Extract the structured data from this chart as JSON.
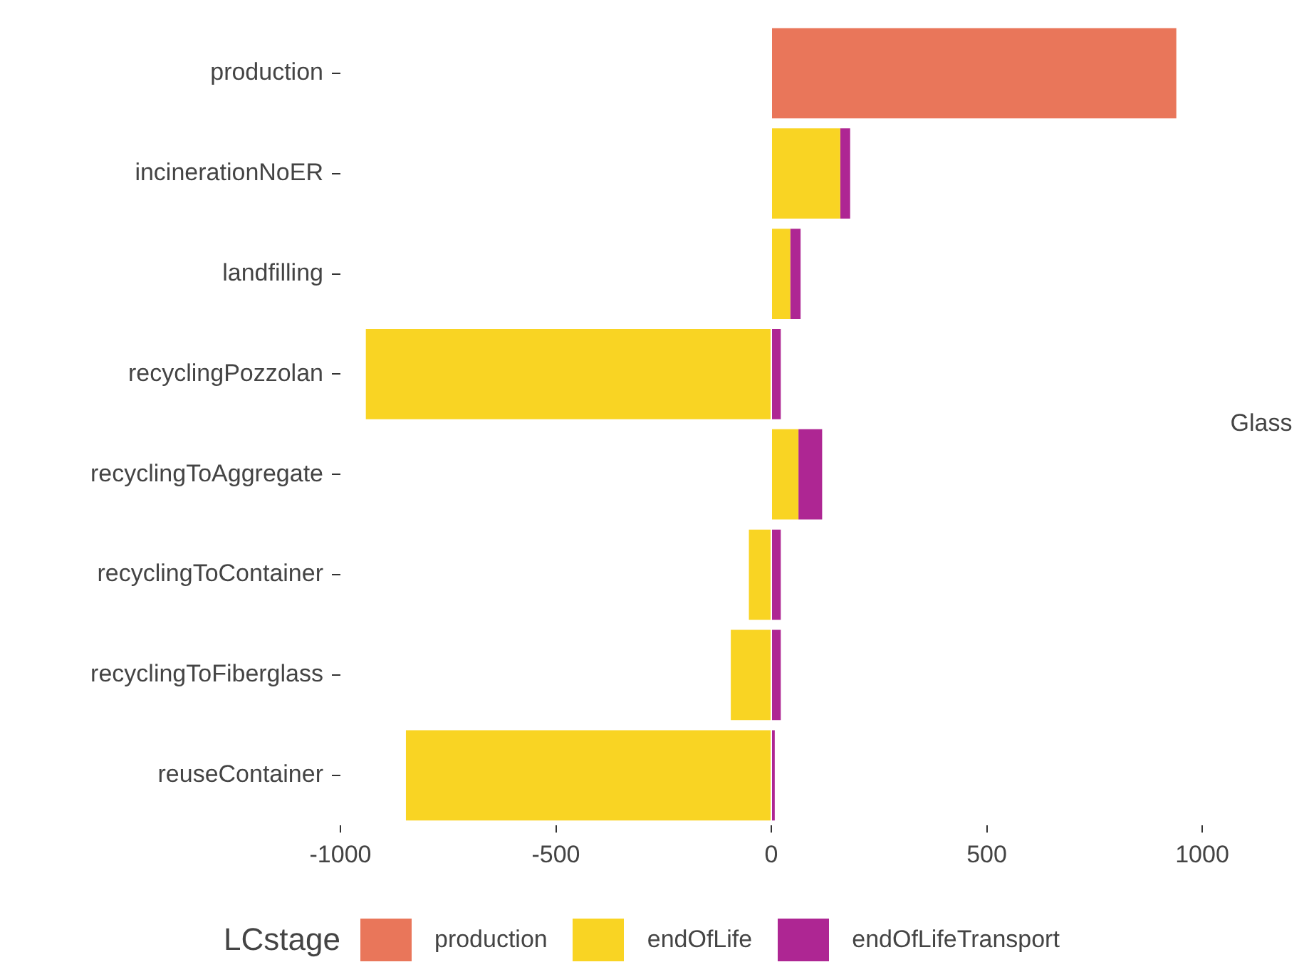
{
  "chart_data": {
    "type": "bar",
    "orientation": "horizontal",
    "stacked": true,
    "categories": [
      "production",
      "incinerationNoER",
      "landfilling",
      "recyclingPozzolan",
      "recyclingToAggregate",
      "recyclingToContainer",
      "recyclingToFiberglass",
      "reuseContainer"
    ],
    "series": [
      {
        "name": "production",
        "color": "#e9765a",
        "values": [
          940,
          null,
          null,
          null,
          null,
          null,
          null,
          null
        ]
      },
      {
        "name": "endOfLife",
        "color": "#f9d423",
        "values": [
          null,
          160,
          44,
          -941,
          63,
          -52,
          -94,
          -848
        ]
      },
      {
        "name": "endOfLifeTransport",
        "color": "#ae2693",
        "values": [
          null,
          23,
          24,
          22,
          55,
          22,
          22,
          8
        ]
      }
    ],
    "xlim": [
      -1000,
      1000
    ],
    "xticks": [
      -1000,
      -500,
      0,
      500,
      1000
    ],
    "grid": false,
    "legend": "bottom",
    "legend_title": "LCstage",
    "annotations": [
      "Glass"
    ]
  }
}
